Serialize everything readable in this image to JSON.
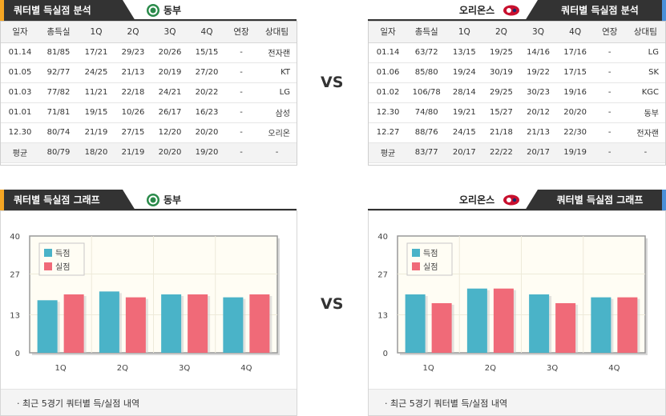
{
  "top_left": {
    "title": "쿼터별 득실점 분석",
    "team": "동부",
    "accent_color": "#f5a623",
    "columns": [
      "일자",
      "총득실",
      "1Q",
      "2Q",
      "3Q",
      "4Q",
      "연장",
      "상대팀"
    ],
    "rows": [
      [
        "01.14",
        "81/85",
        "17/21",
        "29/23",
        "20/26",
        "15/15",
        "-",
        "전자랜"
      ],
      [
        "01.05",
        "92/77",
        "24/25",
        "21/13",
        "20/19",
        "27/20",
        "-",
        "KT"
      ],
      [
        "01.03",
        "77/82",
        "11/21",
        "22/18",
        "24/21",
        "20/22",
        "-",
        "LG"
      ],
      [
        "01.01",
        "71/81",
        "19/15",
        "10/26",
        "26/17",
        "16/23",
        "-",
        "삼성"
      ],
      [
        "12.30",
        "80/74",
        "21/19",
        "27/15",
        "12/20",
        "20/20",
        "-",
        "오리온"
      ]
    ],
    "avg": [
      "평균",
      "80/79",
      "18/20",
      "21/19",
      "20/20",
      "19/20",
      "-",
      "-"
    ]
  },
  "top_right": {
    "title": "쿼터별 득실점 분석",
    "team": "오리온스",
    "accent_color": "#4a90d9",
    "columns": [
      "일자",
      "총득실",
      "1Q",
      "2Q",
      "3Q",
      "4Q",
      "연장",
      "상대팀"
    ],
    "rows": [
      [
        "01.14",
        "63/72",
        "13/15",
        "19/25",
        "14/16",
        "17/16",
        "-",
        "LG"
      ],
      [
        "01.06",
        "85/80",
        "19/24",
        "30/19",
        "19/22",
        "17/15",
        "-",
        "SK"
      ],
      [
        "01.02",
        "106/78",
        "28/14",
        "29/25",
        "30/23",
        "19/16",
        "-",
        "KGC"
      ],
      [
        "12.30",
        "74/80",
        "19/21",
        "15/27",
        "20/12",
        "20/20",
        "-",
        "동부"
      ],
      [
        "12.27",
        "88/76",
        "24/15",
        "21/18",
        "21/13",
        "22/30",
        "-",
        "전자랜"
      ]
    ],
    "avg": [
      "평균",
      "83/77",
      "20/17",
      "22/22",
      "20/17",
      "19/19",
      "-",
      "-"
    ]
  },
  "vs_label": "VS",
  "bottom_left": {
    "title": "쿼터별 득실점 그래프",
    "team": "동부",
    "footnote": "최근 5경기 쿼터별 득/실점 내역"
  },
  "bottom_right": {
    "title": "쿼터별 득실점 그래프",
    "team": "오리온스",
    "footnote": "최근 5경기 쿼터별 득/실점 내역"
  },
  "colors": {
    "scored": "#4ab3c8",
    "allowed": "#f06a78"
  },
  "chart_data": [
    {
      "type": "bar",
      "categories": [
        "1Q",
        "2Q",
        "3Q",
        "4Q"
      ],
      "series": [
        {
          "name": "득점",
          "values": [
            18,
            21,
            20,
            19
          ]
        },
        {
          "name": "실점",
          "values": [
            20,
            19,
            20,
            20
          ]
        }
      ],
      "yticks": [
        0,
        13,
        27,
        40
      ],
      "ylim": [
        0,
        40
      ],
      "legend": "top-left"
    },
    {
      "type": "bar",
      "categories": [
        "1Q",
        "2Q",
        "3Q",
        "4Q"
      ],
      "series": [
        {
          "name": "득점",
          "values": [
            20,
            22,
            20,
            19
          ]
        },
        {
          "name": "실점",
          "values": [
            17,
            22,
            17,
            19
          ]
        }
      ],
      "yticks": [
        0,
        13,
        27,
        40
      ],
      "ylim": [
        0,
        40
      ],
      "legend": "top-left"
    }
  ]
}
